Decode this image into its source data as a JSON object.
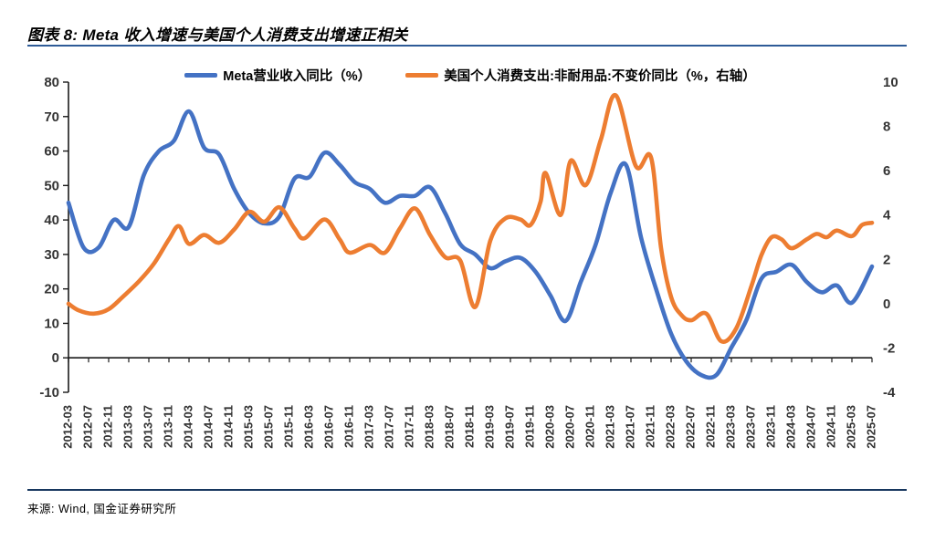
{
  "page": {
    "title": "图表 8: Meta 收入增速与美国个人消费支出增速正相关",
    "source": "来源: Wind, 国金证券研究所",
    "title_rule_color": "#2E5B97",
    "bottom_rule_color": "#17375E"
  },
  "chart_data": {
    "type": "line",
    "title": "图表 8: Meta 收入增速与美国个人消费支出增速正相关",
    "grid": false,
    "legend_position": "top",
    "left_axis": {
      "min": -10,
      "max": 80,
      "step": 10,
      "ticks": [
        "80",
        "70",
        "60",
        "50",
        "40",
        "30",
        "20",
        "10",
        "0",
        "-10"
      ]
    },
    "right_axis": {
      "min": -4,
      "max": 10,
      "step": 2,
      "ticks": [
        "10",
        "8",
        "6",
        "4",
        "2",
        "0",
        "-2",
        "-4"
      ]
    },
    "x_tick_labels": [
      "2012-03",
      "2012-07",
      "2012-11",
      "2013-03",
      "2013-07",
      "2013-11",
      "2014-03",
      "2014-07",
      "2014-11",
      "2015-03",
      "2015-07",
      "2015-11",
      "2016-03",
      "2016-07",
      "2016-11",
      "2017-03",
      "2017-07",
      "2017-11",
      "2018-03",
      "2018-07",
      "2018-11",
      "2019-03",
      "2019-07",
      "2019-11",
      "2020-03",
      "2020-07",
      "2020-11",
      "2021-03",
      "2021-07",
      "2021-11",
      "2022-03",
      "2022-07",
      "2022-11",
      "2023-03",
      "2023-07",
      "2023-11",
      "2024-03",
      "2024-07",
      "2024-11",
      "2025-03",
      "2025-07"
    ],
    "series": [
      {
        "name": "Meta营业收入同比（%）",
        "axis": "left",
        "color": "#4472C4",
        "points": [
          [
            "2012-03",
            45
          ],
          [
            "2012-06",
            32
          ],
          [
            "2012-09",
            32
          ],
          [
            "2012-12",
            40
          ],
          [
            "2013-03",
            38
          ],
          [
            "2013-06",
            53
          ],
          [
            "2013-09",
            60
          ],
          [
            "2013-12",
            63
          ],
          [
            "2014-03",
            71.5
          ],
          [
            "2014-06",
            61
          ],
          [
            "2014-09",
            59
          ],
          [
            "2014-12",
            49
          ],
          [
            "2015-03",
            42
          ],
          [
            "2015-06",
            39
          ],
          [
            "2015-09",
            41
          ],
          [
            "2015-12",
            52
          ],
          [
            "2016-03",
            52.5
          ],
          [
            "2016-06",
            59.5
          ],
          [
            "2016-09",
            56
          ],
          [
            "2016-12",
            51
          ],
          [
            "2017-03",
            49
          ],
          [
            "2017-06",
            45
          ],
          [
            "2017-09",
            47
          ],
          [
            "2017-12",
            47
          ],
          [
            "2018-03",
            49.5
          ],
          [
            "2018-06",
            42
          ],
          [
            "2018-09",
            33
          ],
          [
            "2018-12",
            30
          ],
          [
            "2019-03",
            26
          ],
          [
            "2019-06",
            28
          ],
          [
            "2019-09",
            29
          ],
          [
            "2019-12",
            25
          ],
          [
            "2020-03",
            18
          ],
          [
            "2020-06",
            10.7
          ],
          [
            "2020-09",
            22
          ],
          [
            "2020-12",
            33
          ],
          [
            "2021-03",
            48
          ],
          [
            "2021-06",
            56
          ],
          [
            "2021-09",
            35
          ],
          [
            "2021-12",
            20
          ],
          [
            "2022-03",
            7
          ],
          [
            "2022-06",
            -1
          ],
          [
            "2022-09",
            -5
          ],
          [
            "2022-12",
            -5
          ],
          [
            "2023-03",
            3
          ],
          [
            "2023-06",
            11
          ],
          [
            "2023-09",
            23
          ],
          [
            "2023-12",
            25
          ],
          [
            "2024-03",
            27
          ],
          [
            "2024-06",
            22
          ],
          [
            "2024-09",
            19
          ],
          [
            "2024-12",
            21
          ],
          [
            "2025-03",
            16
          ],
          [
            "2025-07",
            26.5
          ]
        ]
      },
      {
        "name": "美国个人消费支出:非耐用品:不变价同比（%，右轴）",
        "axis": "right",
        "color": "#ED7D31",
        "points": [
          [
            "2012-03",
            0
          ],
          [
            "2012-05",
            -0.3
          ],
          [
            "2012-08",
            -0.45
          ],
          [
            "2012-11",
            -0.25
          ],
          [
            "2013-02",
            0.35
          ],
          [
            "2013-05",
            1.0
          ],
          [
            "2013-08",
            1.8
          ],
          [
            "2013-11",
            2.9
          ],
          [
            "2014-01",
            3.5
          ],
          [
            "2014-03",
            2.7
          ],
          [
            "2014-06",
            3.1
          ],
          [
            "2014-09",
            2.75
          ],
          [
            "2014-12",
            3.35
          ],
          [
            "2015-03",
            4.15
          ],
          [
            "2015-06",
            3.7
          ],
          [
            "2015-09",
            4.35
          ],
          [
            "2015-12",
            3.4
          ],
          [
            "2016-02",
            2.95
          ],
          [
            "2016-06",
            3.8
          ],
          [
            "2016-09",
            2.9
          ],
          [
            "2016-11",
            2.3
          ],
          [
            "2017-03",
            2.65
          ],
          [
            "2017-06",
            2.3
          ],
          [
            "2017-09",
            3.4
          ],
          [
            "2017-12",
            4.3
          ],
          [
            "2018-03",
            3.1
          ],
          [
            "2018-06",
            2.1
          ],
          [
            "2018-09",
            1.95
          ],
          [
            "2018-12",
            -0.15
          ],
          [
            "2019-03",
            2.85
          ],
          [
            "2019-06",
            3.85
          ],
          [
            "2019-09",
            3.8
          ],
          [
            "2019-11",
            3.55
          ],
          [
            "2020-01",
            4.6
          ],
          [
            "2020-02",
            5.9
          ],
          [
            "2020-05",
            4.0
          ],
          [
            "2020-07",
            6.45
          ],
          [
            "2020-10",
            5.35
          ],
          [
            "2021-01",
            7.4
          ],
          [
            "2021-04",
            9.4
          ],
          [
            "2021-08",
            6.2
          ],
          [
            "2021-11",
            6.6
          ],
          [
            "2022-01",
            2.5
          ],
          [
            "2022-03",
            0.3
          ],
          [
            "2022-05",
            -0.5
          ],
          [
            "2022-07",
            -0.75
          ],
          [
            "2022-10",
            -0.45
          ],
          [
            "2023-01",
            -1.7
          ],
          [
            "2023-04",
            -1.1
          ],
          [
            "2023-07",
            0.8
          ],
          [
            "2023-09",
            2.2
          ],
          [
            "2023-11",
            3.0
          ],
          [
            "2024-01",
            2.9
          ],
          [
            "2024-03",
            2.5
          ],
          [
            "2024-06",
            2.9
          ],
          [
            "2024-08",
            3.15
          ],
          [
            "2024-10",
            3.0
          ],
          [
            "2024-12",
            3.3
          ],
          [
            "2025-03",
            3.05
          ],
          [
            "2025-05",
            3.55
          ],
          [
            "2025-07",
            3.65
          ]
        ]
      }
    ]
  }
}
